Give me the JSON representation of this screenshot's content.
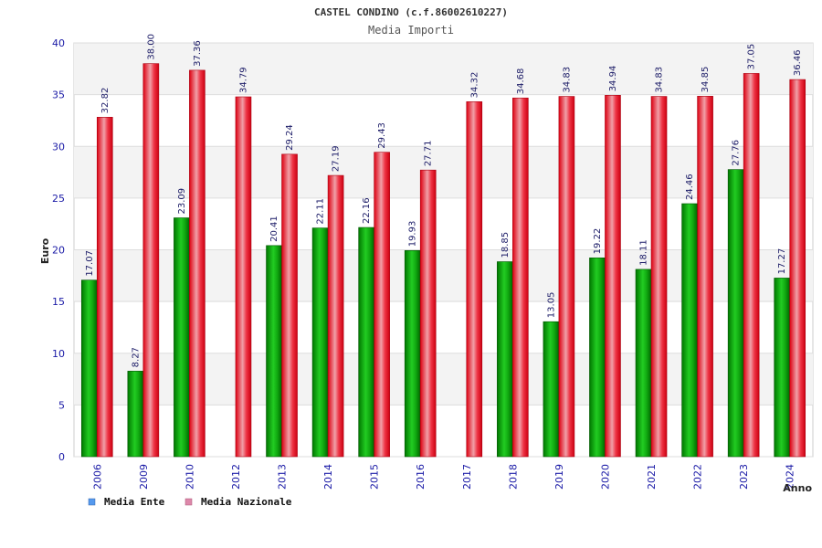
{
  "chart_data": {
    "type": "bar",
    "title": "CASTEL CONDINO (c.f.86002610227)",
    "subtitle": "Media Importi",
    "xlabel": "Anno",
    "ylabel": "Euro",
    "ylim": [
      0,
      40
    ],
    "yticks": [
      "0",
      "5",
      "10",
      "15",
      "20",
      "25",
      "30",
      "35",
      "40"
    ],
    "grid": true,
    "legend_position": "bottom-left",
    "categories": [
      "2006",
      "2009",
      "2010",
      "2012",
      "2013",
      "2014",
      "2015",
      "2016",
      "2017",
      "2018",
      "2019",
      "2020",
      "2021",
      "2022",
      "2023",
      "2024"
    ],
    "series": [
      {
        "name": "Media Ente",
        "color": "#11bb11",
        "legend_color": "#5599ee",
        "values": [
          17.07,
          8.27,
          23.09,
          null,
          20.41,
          22.11,
          22.16,
          19.93,
          null,
          18.85,
          13.05,
          19.22,
          18.11,
          24.46,
          27.76,
          17.27
        ],
        "labels": [
          "17.07",
          "8.27",
          "23.09",
          "",
          "20.41",
          "22.11",
          "22.16",
          "19.93",
          "",
          "18.85",
          "13.05",
          "19.22",
          "18.11",
          "24.46",
          "27.76",
          "17.27"
        ]
      },
      {
        "name": "Media Nazionale",
        "color": "#ee1122",
        "legend_color": "#dd88aa",
        "values": [
          32.82,
          38.0,
          37.36,
          34.79,
          29.24,
          27.19,
          29.43,
          27.71,
          34.32,
          34.68,
          34.83,
          34.94,
          34.83,
          34.85,
          37.05,
          36.46
        ],
        "labels": [
          "32.82",
          "38.00",
          "37.36",
          "34.79",
          "29.24",
          "27.19",
          "29.43",
          "27.71",
          "34.32",
          "34.68",
          "34.83",
          "34.94",
          "34.83",
          "34.85",
          "37.05",
          "36.46"
        ]
      }
    ]
  }
}
